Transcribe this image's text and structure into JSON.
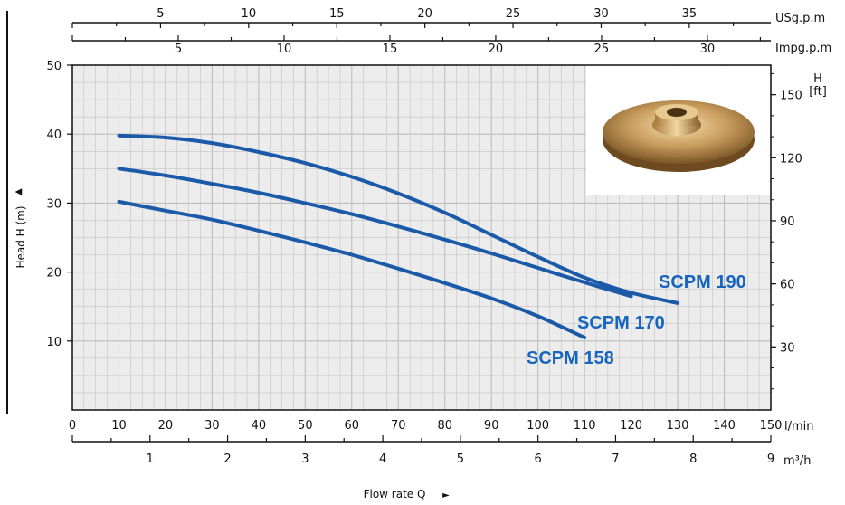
{
  "chart_data": {
    "type": "line",
    "title": "",
    "xlabel": "Flow rate Q",
    "xlabel_arrow": "►",
    "ylabel": "Head H (m)",
    "ylabel_arrow": "▲",
    "xlim": [
      0,
      150
    ],
    "ylim": [
      0,
      50
    ],
    "grid": true,
    "x_axis_lmin": {
      "unit": "l/min",
      "ticks": [
        0,
        10,
        20,
        30,
        40,
        50,
        60,
        70,
        80,
        90,
        100,
        110,
        120,
        130,
        140,
        150
      ]
    },
    "x_axis_m3h": {
      "unit": "m³/h",
      "ticks": [
        1,
        2,
        3,
        4,
        5,
        6,
        7,
        8,
        9
      ]
    },
    "x_axis_usgpm": {
      "unit": "USg.p.m",
      "ticks": [
        5,
        10,
        15,
        20,
        25,
        30,
        35
      ]
    },
    "x_axis_impgpm": {
      "unit": "Impg.p.m",
      "ticks": [
        5,
        10,
        15,
        20,
        25,
        30
      ]
    },
    "y_axis_m": {
      "ticks": [
        10,
        20,
        30,
        40,
        50
      ]
    },
    "y_axis_ft": {
      "unit_top": "H",
      "unit": "[ft]",
      "ticks": [
        30,
        60,
        90,
        120,
        150
      ]
    },
    "series": [
      {
        "name": "SCPM 190",
        "x": [
          10,
          20,
          30,
          40,
          50,
          60,
          70,
          80,
          90,
          100,
          110,
          120,
          130
        ],
        "y": [
          39.8,
          39.5,
          38.7,
          37.4,
          35.8,
          33.8,
          31.4,
          28.6,
          25.4,
          22.2,
          19.2,
          17.0,
          15.5
        ]
      },
      {
        "name": "SCPM 170",
        "x": [
          10,
          20,
          30,
          40,
          50,
          60,
          70,
          80,
          90,
          100,
          110,
          120
        ],
        "y": [
          35.0,
          34.0,
          32.8,
          31.5,
          30.0,
          28.4,
          26.6,
          24.7,
          22.7,
          20.6,
          18.5,
          16.5
        ]
      },
      {
        "name": "SCPM 158",
        "x": [
          10,
          20,
          30,
          40,
          50,
          60,
          70,
          80,
          90,
          100,
          110
        ],
        "y": [
          30.2,
          28.9,
          27.6,
          26.0,
          24.3,
          22.5,
          20.5,
          18.4,
          16.2,
          13.6,
          10.5
        ]
      }
    ],
    "colors": {
      "curve": "#1b5aa8",
      "label": "#1565c0",
      "grid": "#bdbdbd",
      "background": "#ececec"
    }
  },
  "inset": {
    "icon": "brass-impeller-photo"
  }
}
